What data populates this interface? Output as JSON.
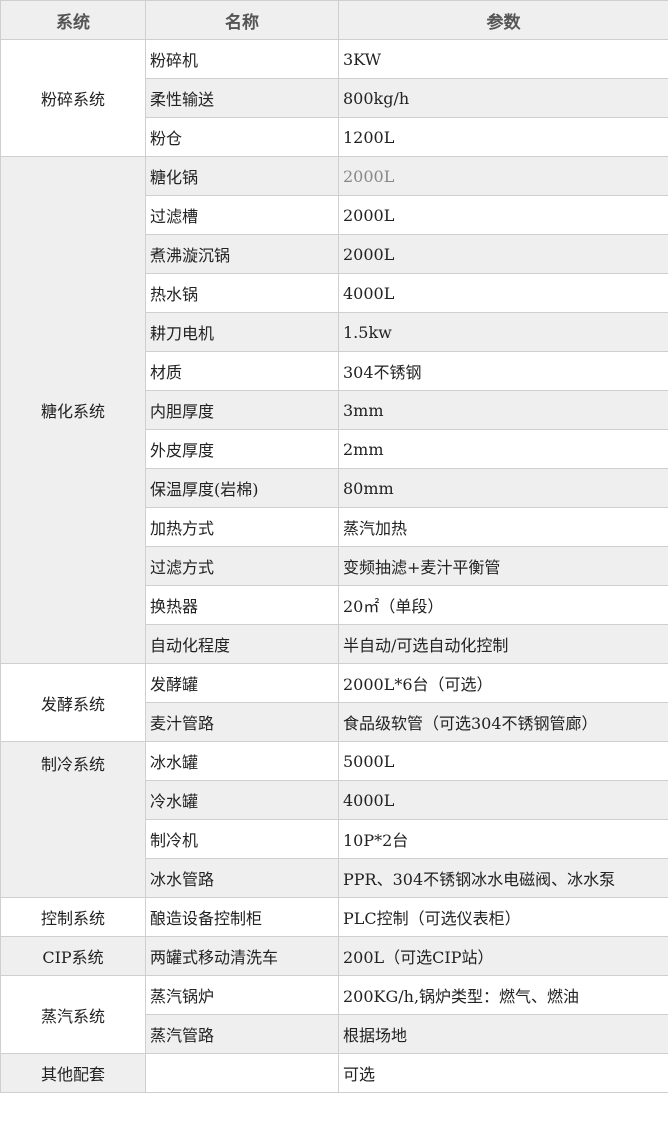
{
  "header": {
    "system": "系统",
    "name": "名称",
    "params": "参数"
  },
  "groups": [
    {
      "system": "粉碎系统",
      "rows": [
        {
          "name": "粉碎机",
          "value": "3KW"
        },
        {
          "name": "柔性输送",
          "value": "800kg/h"
        },
        {
          "name": "粉仓",
          "value": "1200L"
        }
      ]
    },
    {
      "system": "糖化系统",
      "rows": [
        {
          "name": "糖化锅",
          "value": "2000L",
          "muted": true
        },
        {
          "name": "过滤槽",
          "value": "2000L"
        },
        {
          "name": "煮沸漩沉锅",
          "value": "2000L"
        },
        {
          "name": "热水锅",
          "value": "4000L"
        },
        {
          "name": "耕刀电机",
          "value": "1.5kw"
        },
        {
          "name": "材质",
          "value": "304不锈钢"
        },
        {
          "name": "内胆厚度",
          "value": "3mm"
        },
        {
          "name": "外皮厚度",
          "value": "2mm"
        },
        {
          "name": "保温厚度(岩棉)",
          "value": "80mm"
        },
        {
          "name": "加热方式",
          "value": "蒸汽加热"
        },
        {
          "name": "过滤方式",
          "value": "变频抽滤+麦汁平衡管"
        },
        {
          "name": "换热器",
          "value": "20㎡（单段）"
        },
        {
          "name": "自动化程度",
          "value": "半自动/可选自动化控制"
        }
      ]
    },
    {
      "system": "发酵系统",
      "rows": [
        {
          "name": "发酵罐",
          "value": "2000L*6台（可选）"
        },
        {
          "name": "麦汁管路",
          "value": "食品级软管（可选304不锈钢管廊）"
        }
      ]
    },
    {
      "system": "制冷系统",
      "rows": [
        {
          "name": "冰水罐",
          "value": "5000L"
        },
        {
          "name": "冷水罐",
          "value": "4000L"
        },
        {
          "name": "制冷机",
          "value": "10P*2台"
        },
        {
          "name": "冰水管路",
          "value": "PPR、304不锈钢冰水电磁阀、冰水泵"
        }
      ]
    },
    {
      "system": "控制系统",
      "rows": [
        {
          "name": "酿造设备控制柜",
          "value": "PLC控制（可选仪表柜）"
        }
      ]
    },
    {
      "system": "CIP系统",
      "rows": [
        {
          "name": "两罐式移动清洗车",
          "value": "200L（可选CIP站）"
        }
      ]
    },
    {
      "system": "蒸汽系统",
      "rows": [
        {
          "name": "蒸汽锅炉",
          "value": "200KG/h,锅炉类型：燃气、燃油"
        },
        {
          "name": "蒸汽管路",
          "value": "根据场地"
        }
      ]
    },
    {
      "system": "其他配套",
      "rows": [
        {
          "name": "",
          "value": "可选"
        }
      ]
    }
  ]
}
